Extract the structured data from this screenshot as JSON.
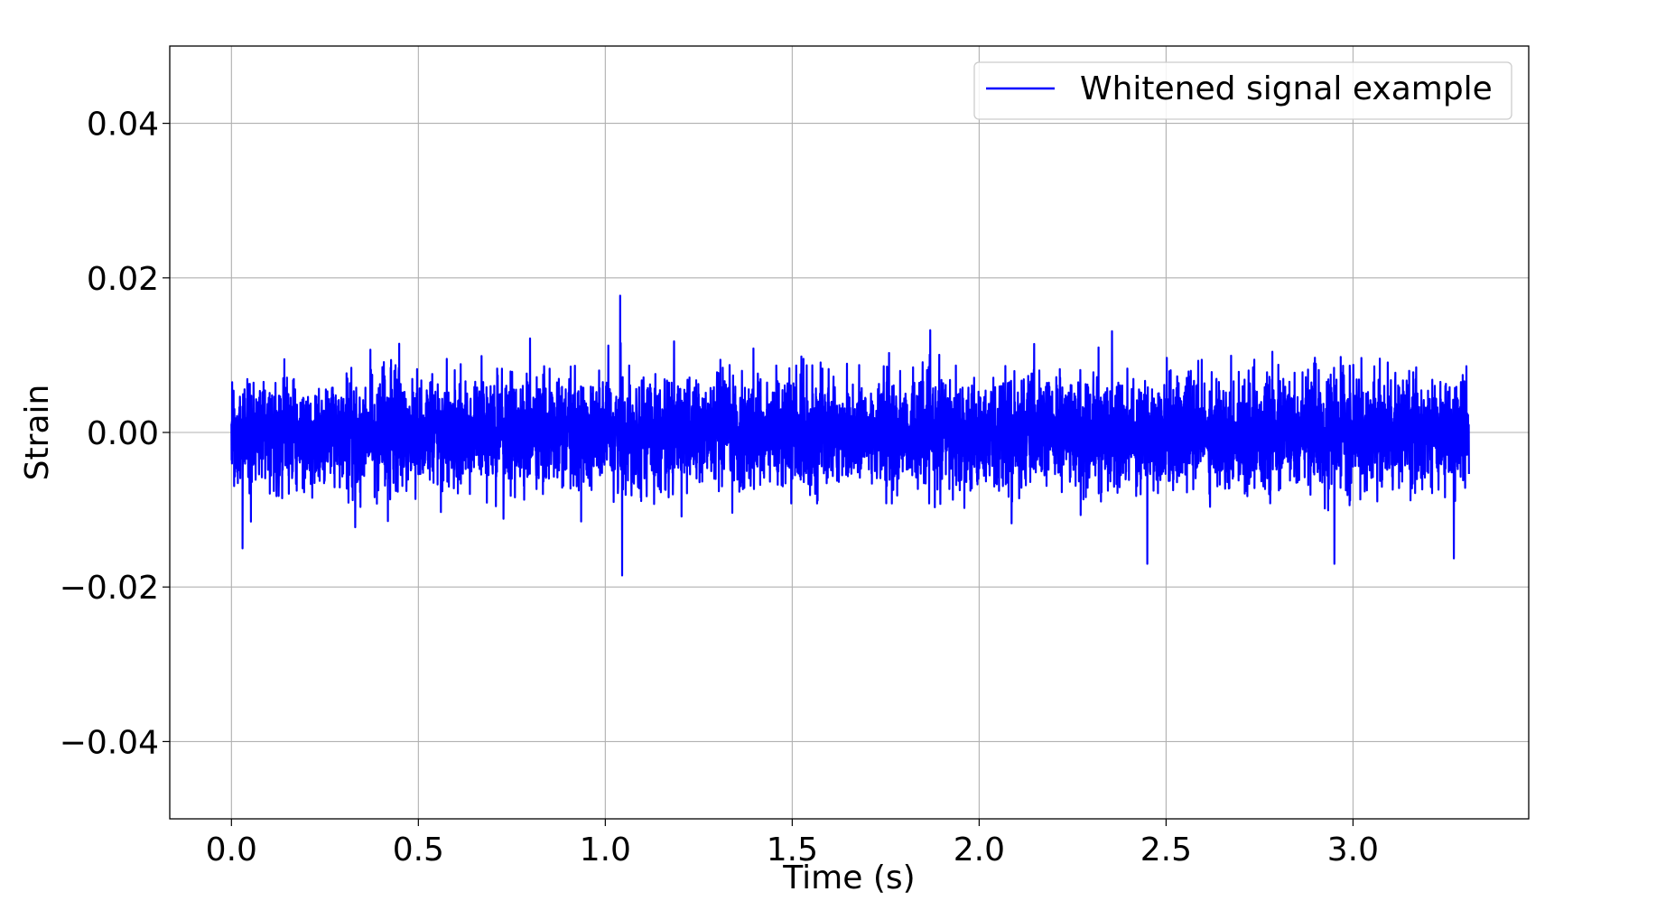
{
  "chart_data": {
    "type": "line",
    "title": "",
    "xlabel": "Time (s)",
    "ylabel": "Strain",
    "xlim": [
      -0.165,
      3.47
    ],
    "ylim": [
      -0.05,
      0.05
    ],
    "xticks": [
      0.0,
      0.5,
      1.0,
      1.5,
      2.0,
      2.5,
      3.0
    ],
    "xtick_labels": [
      "0.0",
      "0.5",
      "1.0",
      "1.5",
      "2.0",
      "2.5",
      "3.0"
    ],
    "yticks": [
      0.04,
      0.02,
      0.0,
      -0.02,
      -0.04
    ],
    "ytick_labels": [
      "0.04",
      "0.02",
      "0.00",
      "−0.02",
      "−0.04"
    ],
    "grid": true,
    "legend_position": "top-right",
    "series": [
      {
        "name": "Whitened signal example",
        "color": "#0000ff",
        "x_range": [
          0.0,
          3.31
        ],
        "typical_amplitude": 0.009,
        "max_value": 0.0177,
        "min_value": -0.0185,
        "peak_points": [
          {
            "x": 1.04,
            "y": 0.0177
          },
          {
            "x": 1.045,
            "y": -0.0185
          },
          {
            "x": 2.45,
            "y": -0.017
          },
          {
            "x": 2.95,
            "y": -0.017
          },
          {
            "x": 3.27,
            "y": -0.0163
          },
          {
            "x": 0.03,
            "y": -0.015
          }
        ]
      }
    ]
  }
}
